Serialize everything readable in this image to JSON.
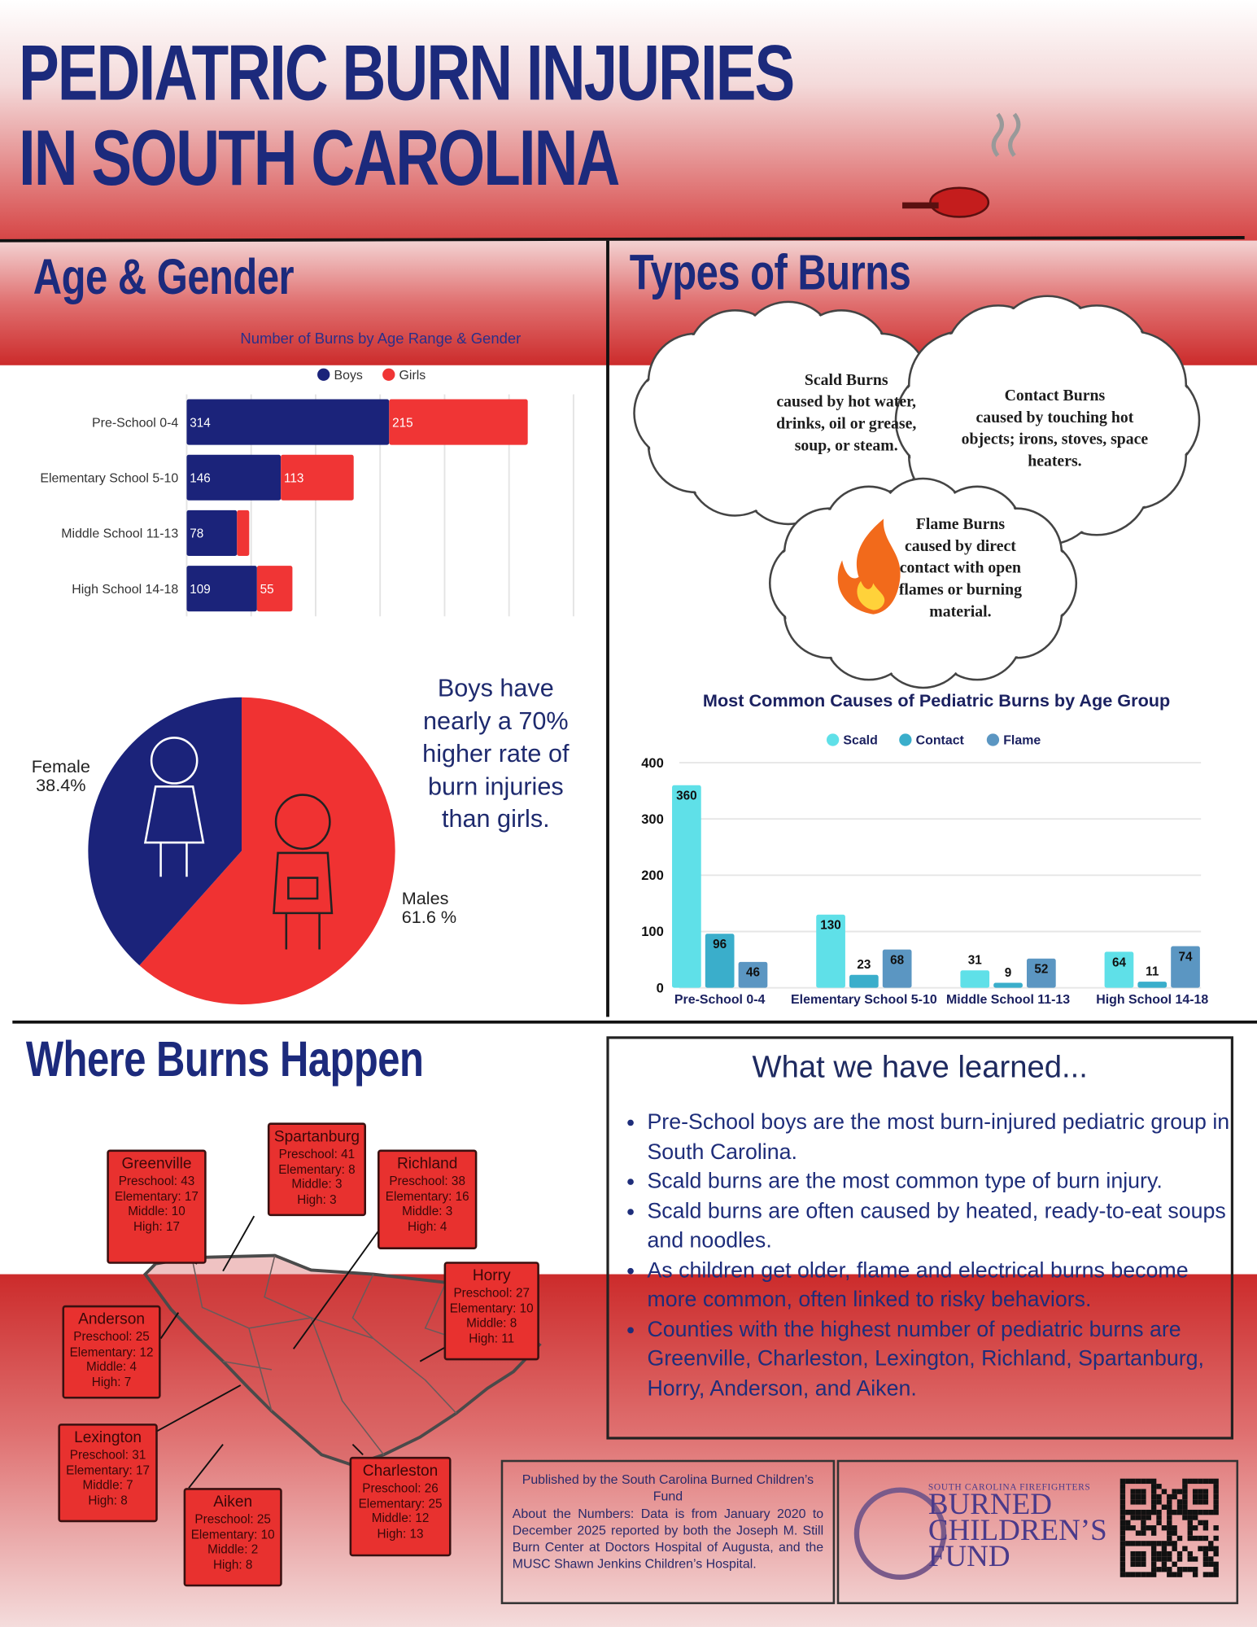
{
  "header": {
    "title_lines": [
      "PEDIATRIC BURN INJURIES",
      "IN SOUTH CAROLINA"
    ]
  },
  "age_gender": {
    "heading": "Age & Gender",
    "pie_statement": "Boys have nearly a 70% higher rate of burn injuries than girls."
  },
  "types_of_burns": {
    "heading": "Types of Burns",
    "cards": [
      {
        "title": "Scald Burns",
        "text": "caused by hot water, drinks, oil or grease, soup, or steam."
      },
      {
        "title": "Contact Burns",
        "text": "caused by touching hot objects; irons, stoves, space heaters."
      },
      {
        "title": "Flame Burns",
        "text": "caused by direct contact with open flames or burning material."
      }
    ]
  },
  "chart_data": [
    {
      "type": "bar",
      "orientation": "horizontal",
      "stacked": true,
      "title": "Number of Burns by Age Range & Gender",
      "categories": [
        "Pre-School 0-4",
        "Elementary School 5-10",
        "Middle School 11-13",
        "High School 14-18"
      ],
      "series": [
        {
          "name": "Boys",
          "color": "#1b237a",
          "values": [
            314,
            146,
            78,
            109
          ]
        },
        {
          "name": "Girls",
          "color": "#f03535",
          "values": [
            215,
            113,
            19,
            55
          ],
          "value_labels": [
            215,
            113,
            null,
            55
          ]
        }
      ],
      "xlim": [
        0,
        600
      ],
      "xticks": [
        0,
        100,
        200,
        300,
        400,
        500,
        600
      ],
      "tick_labels": false,
      "grid": true,
      "legend": "top"
    },
    {
      "type": "pie",
      "categories": [
        "Males",
        "Female"
      ],
      "values": [
        61.6,
        38.4
      ],
      "value_labels": [
        "61.6 %",
        "38.4%"
      ],
      "colors": [
        "#f03232",
        "#1b237a"
      ]
    },
    {
      "type": "bar",
      "orientation": "vertical",
      "title": "Most Common Causes of Pediatric Burns by Age Group",
      "categories": [
        "Pre-School 0-4",
        "Elementary School 5-10",
        "Middle School 11-13",
        "High School 14-18"
      ],
      "series": [
        {
          "name": "Scald",
          "color": "#5fe0e8",
          "values": [
            360,
            130,
            31,
            64
          ]
        },
        {
          "name": "Contact",
          "color": "#3aaecb",
          "values": [
            96,
            23,
            9,
            11
          ]
        },
        {
          "name": "Flame",
          "color": "#5b96c2",
          "values": [
            46,
            68,
            52,
            74
          ]
        }
      ],
      "ylim": [
        0,
        400
      ],
      "yticks": [
        0,
        100,
        200,
        300,
        400
      ],
      "grid": true,
      "legend": "top"
    }
  ],
  "where_burns_happen": {
    "heading": "Where Burns Happen",
    "counties": [
      {
        "name": "Greenville",
        "lines": [
          "Preschool: 43",
          "Elementary: 17",
          "Middle: 10",
          "High: 17"
        ]
      },
      {
        "name": "Spartanburg",
        "lines": [
          "Preschool: 41",
          "Elementary: 8",
          "Middle: 3",
          "High: 3"
        ]
      },
      {
        "name": "Richland",
        "lines": [
          "Preschool: 38",
          "Elementary: 16",
          "Middle: 3",
          "High: 4"
        ]
      },
      {
        "name": "Horry",
        "lines": [
          "Preschool: 27",
          "Elementary: 10",
          "Middle: 8",
          "High: 11"
        ]
      },
      {
        "name": "Anderson",
        "lines": [
          "Preschool: 25",
          "Elementary: 12",
          "Middle: 4",
          "High: 7"
        ]
      },
      {
        "name": "Lexington",
        "lines": [
          "Preschool: 31",
          "Elementary: 17",
          "Middle: 7",
          "High: 8"
        ]
      },
      {
        "name": "Aiken",
        "lines": [
          "Preschool: 25",
          "Elementary: 10",
          "Middle: 2",
          "High: 8"
        ]
      },
      {
        "name": "Charleston",
        "lines": [
          "Preschool: 26",
          "Elementary: 25",
          "Middle: 12",
          "High: 13"
        ]
      }
    ]
  },
  "learned": {
    "title": "What we have learned...",
    "bullets": [
      "Pre-School boys are the most burn-injured pediatric group in South Carolina.",
      "Scald burns are the most common type of burn injury.",
      "Scald burns are often caused by heated, ready-to-eat soups and noodles.",
      "As children get older, flame and electrical burns become more common, often linked to risky behaviors.",
      "Counties with the highest number of pediatric burns are Greenville, Charleston, Lexington, Richland, Spartanburg, Horry, Anderson, and Aiken."
    ]
  },
  "footer": {
    "published": "Published by the South Carolina Burned Children’s Fund",
    "about": "About the Numbers: Data is from January 2020 to December 2025 reported by both the Joseph M. Still Burn Center at Doctors Hospital of Augusta, and the MUSC Shawn Jenkins Children’s Hospital.",
    "logo": {
      "org": "SOUTH CAROLINA FIREFIGHTERS",
      "lines": [
        "BURNED",
        "CHILDREN’S",
        "FUND"
      ]
    }
  }
}
